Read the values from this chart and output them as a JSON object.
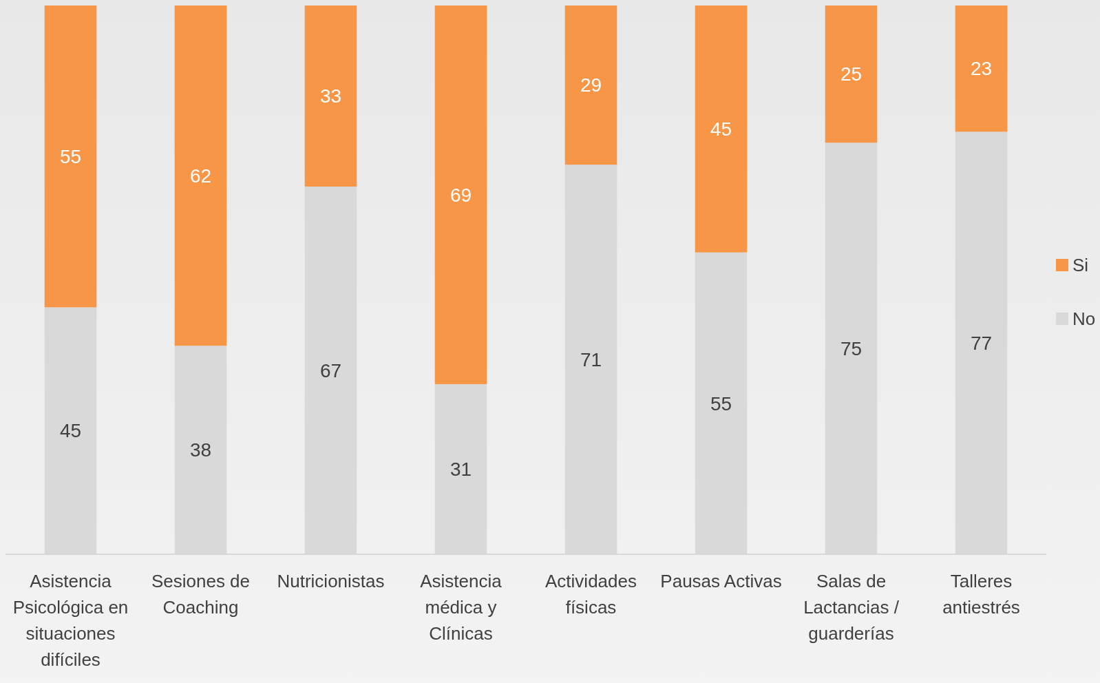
{
  "chart_data": {
    "type": "bar",
    "stacked": true,
    "data_labels": true,
    "legend": "right",
    "grid": false,
    "categories": [
      "Asistencia Psicológica en situaciones difíciles",
      "Sesiones de Coaching",
      "Nutricionistas",
      "Asistencia médica y Clínicas",
      "Actividades físicas",
      "Pausas Activas",
      "Salas de Lactancias / guarderías",
      "Talleres antiestrés"
    ],
    "series": [
      {
        "name": "No",
        "color": "#d9d9d9",
        "values": [
          45,
          38,
          67,
          31,
          71,
          55,
          75,
          77
        ]
      },
      {
        "name": "Si",
        "color": "#f79646",
        "values": [
          55,
          62,
          33,
          69,
          29,
          45,
          25,
          23
        ]
      }
    ]
  }
}
